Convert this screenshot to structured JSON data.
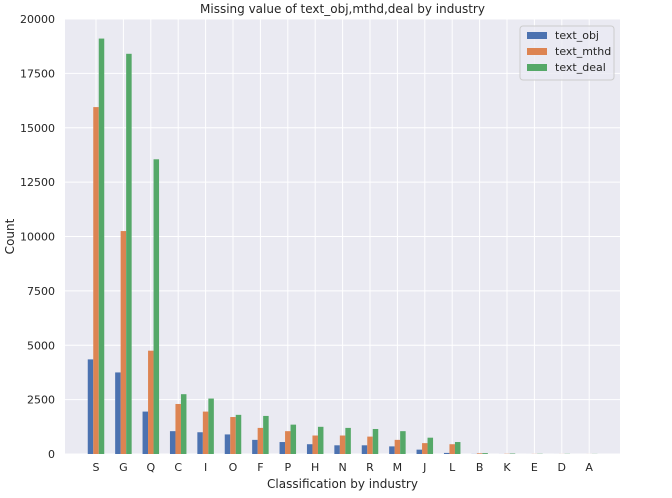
{
  "chart_data": {
    "type": "bar",
    "title": "Missing value of text_obj,mthd,deal by industry",
    "xlabel": "Classification by industry",
    "ylabel": "Count",
    "ylim": [
      0,
      20000
    ],
    "yticks": [
      0,
      2500,
      5000,
      7500,
      10000,
      12500,
      15000,
      17500,
      20000
    ],
    "grid": true,
    "legend_position": "top-right",
    "categories": [
      "S",
      "G",
      "Q",
      "C",
      "I",
      "O",
      "F",
      "P",
      "H",
      "N",
      "R",
      "M",
      "J",
      "L",
      "B",
      "K",
      "E",
      "D",
      "A"
    ],
    "series": [
      {
        "name": "text_obj",
        "color": "#4c72b0",
        "values": [
          4350,
          3750,
          1950,
          1050,
          1000,
          900,
          650,
          550,
          450,
          400,
          400,
          350,
          200,
          50,
          5,
          2,
          1,
          1,
          0
        ]
      },
      {
        "name": "text_mthd",
        "color": "#dd8452",
        "values": [
          15950,
          10250,
          4750,
          2300,
          1950,
          1700,
          1200,
          1050,
          850,
          850,
          800,
          650,
          500,
          450,
          30,
          10,
          5,
          3,
          2
        ]
      },
      {
        "name": "text_deal",
        "color": "#55a868",
        "values": [
          19100,
          18400,
          13550,
          2750,
          2550,
          1800,
          1750,
          1350,
          1250,
          1200,
          1150,
          1050,
          750,
          550,
          40,
          20,
          10,
          8,
          5
        ]
      }
    ]
  }
}
